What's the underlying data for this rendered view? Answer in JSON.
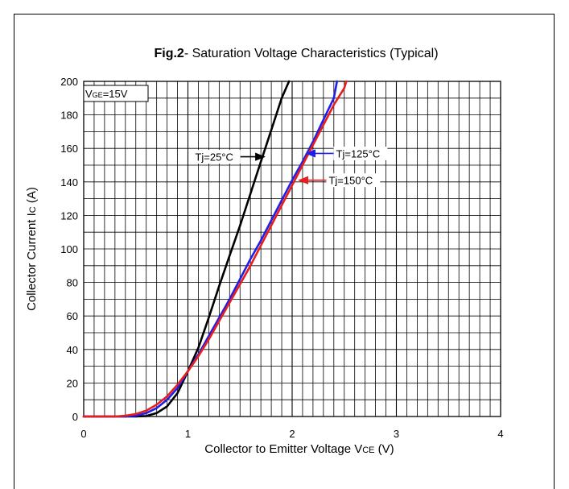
{
  "chart_data": {
    "type": "line",
    "title_bold": "Fig.2",
    "title_rest": "- Saturation Voltage Characteristics (Typical)",
    "xlabel_main": "Collector to Emitter Voltage V",
    "xlabel_sub": "CE",
    "xlabel_unit": " (V)",
    "ylabel_main": "Collector Current I",
    "ylabel_sub": "C",
    "ylabel_unit": " (A)",
    "xlim": [
      0,
      4
    ],
    "ylim": [
      0,
      200
    ],
    "x_ticks": [
      "0",
      "1",
      "2",
      "3",
      "4"
    ],
    "y_ticks": [
      "0",
      "20",
      "40",
      "60",
      "80",
      "100",
      "120",
      "140",
      "160",
      "180",
      "200"
    ],
    "grid": true,
    "condition_prefix": "V",
    "condition_sub": "GE",
    "condition_rest": "=15V",
    "series": [
      {
        "name": "Tj=25°C",
        "color": "#000000",
        "x": [
          0,
          0.5,
          0.6,
          0.7,
          0.8,
          0.9,
          1.0,
          1.1,
          1.2,
          1.3,
          1.4,
          1.5,
          1.6,
          1.7,
          1.8,
          1.9,
          1.97
        ],
        "y": [
          0,
          0,
          0.3,
          2,
          6,
          14,
          27,
          41,
          59,
          78,
          96,
          114,
          133,
          152,
          171,
          190,
          200
        ]
      },
      {
        "name": "Tj=125°C",
        "color": "#1f1fe6",
        "x": [
          0,
          0.4,
          0.5,
          0.6,
          0.7,
          0.8,
          0.9,
          1.0,
          1.1,
          1.2,
          1.3,
          1.4,
          1.5,
          1.6,
          1.7,
          1.8,
          1.9,
          2.0,
          2.1,
          2.2,
          2.3,
          2.4,
          2.43
        ],
        "y": [
          0,
          0,
          0.5,
          2,
          5,
          10,
          17,
          27,
          37,
          48,
          59,
          70,
          82,
          94,
          105,
          117,
          129,
          141,
          152,
          164,
          177,
          190,
          200
        ]
      },
      {
        "name": "Tj=150°C",
        "color": "#e61e1e",
        "x": [
          0,
          0.3,
          0.4,
          0.5,
          0.6,
          0.7,
          0.8,
          0.9,
          1.0,
          1.1,
          1.2,
          1.3,
          1.4,
          1.5,
          1.6,
          1.7,
          1.8,
          1.9,
          2.0,
          2.1,
          2.2,
          2.3,
          2.4,
          2.5,
          2.52
        ],
        "y": [
          0,
          0,
          0.5,
          1.5,
          3.5,
          7,
          12,
          19,
          27,
          36,
          46,
          57,
          68,
          79,
          90,
          102,
          114,
          126,
          138,
          150,
          162,
          174,
          186,
          196,
          200
        ]
      }
    ],
    "annotations": [
      {
        "text": "Tj=25°C",
        "series": 0,
        "side": "left",
        "at_x": 1.75,
        "at_y": 155
      },
      {
        "text": "Tj=125°C",
        "series": 1,
        "side": "right",
        "at_x": 2.12,
        "at_y": 157
      },
      {
        "text": "Tj=150°C",
        "series": 2,
        "side": "right",
        "at_x": 2.05,
        "at_y": 141
      }
    ]
  }
}
